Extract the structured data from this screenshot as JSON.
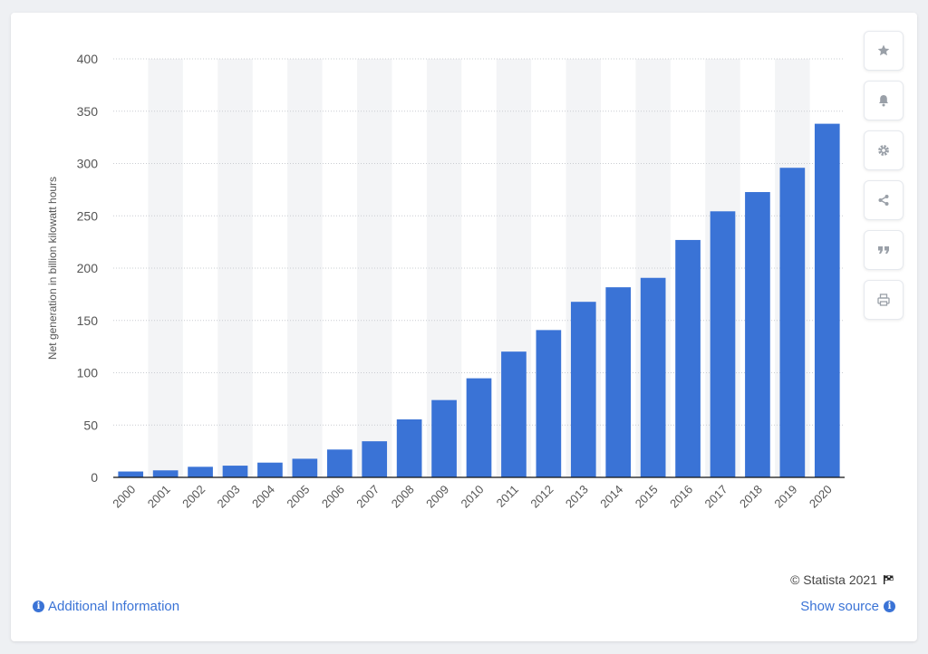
{
  "colors": {
    "bar": "#3a73d6",
    "band": "#f3f4f6",
    "grid": "#c9ccd1",
    "axis": "#111111",
    "label": "#555555",
    "accent": "#3a73d6"
  },
  "chart_data": {
    "type": "bar",
    "categories": [
      "2000",
      "2001",
      "2002",
      "2003",
      "2004",
      "2005",
      "2006",
      "2007",
      "2008",
      "2009",
      "2010",
      "2011",
      "2012",
      "2013",
      "2014",
      "2015",
      "2016",
      "2017",
      "2018",
      "2019",
      "2020"
    ],
    "values": [
      5.6,
      6.7,
      10.1,
      11.2,
      14.1,
      17.8,
      26.6,
      34.5,
      55.4,
      73.9,
      94.7,
      120.2,
      140.8,
      167.8,
      181.7,
      190.7,
      226.9,
      254.3,
      272.7,
      295.9,
      338.0
    ],
    "ylabel": "Net generation in billion kilowatt hours",
    "xlabel": "",
    "ylim": [
      0,
      400
    ],
    "yticks": [
      0,
      50,
      100,
      150,
      200,
      250,
      300,
      350,
      400
    ],
    "grid": true,
    "legend": "none"
  },
  "toolbar": {
    "items": [
      {
        "icon": "star-icon"
      },
      {
        "icon": "bell-icon"
      },
      {
        "icon": "gear-icon"
      },
      {
        "icon": "share-icon"
      },
      {
        "icon": "quote-icon"
      },
      {
        "icon": "print-icon"
      }
    ]
  },
  "footer": {
    "credit": "© Statista 2021",
    "additional_info": "Additional Information",
    "show_source": "Show source"
  }
}
